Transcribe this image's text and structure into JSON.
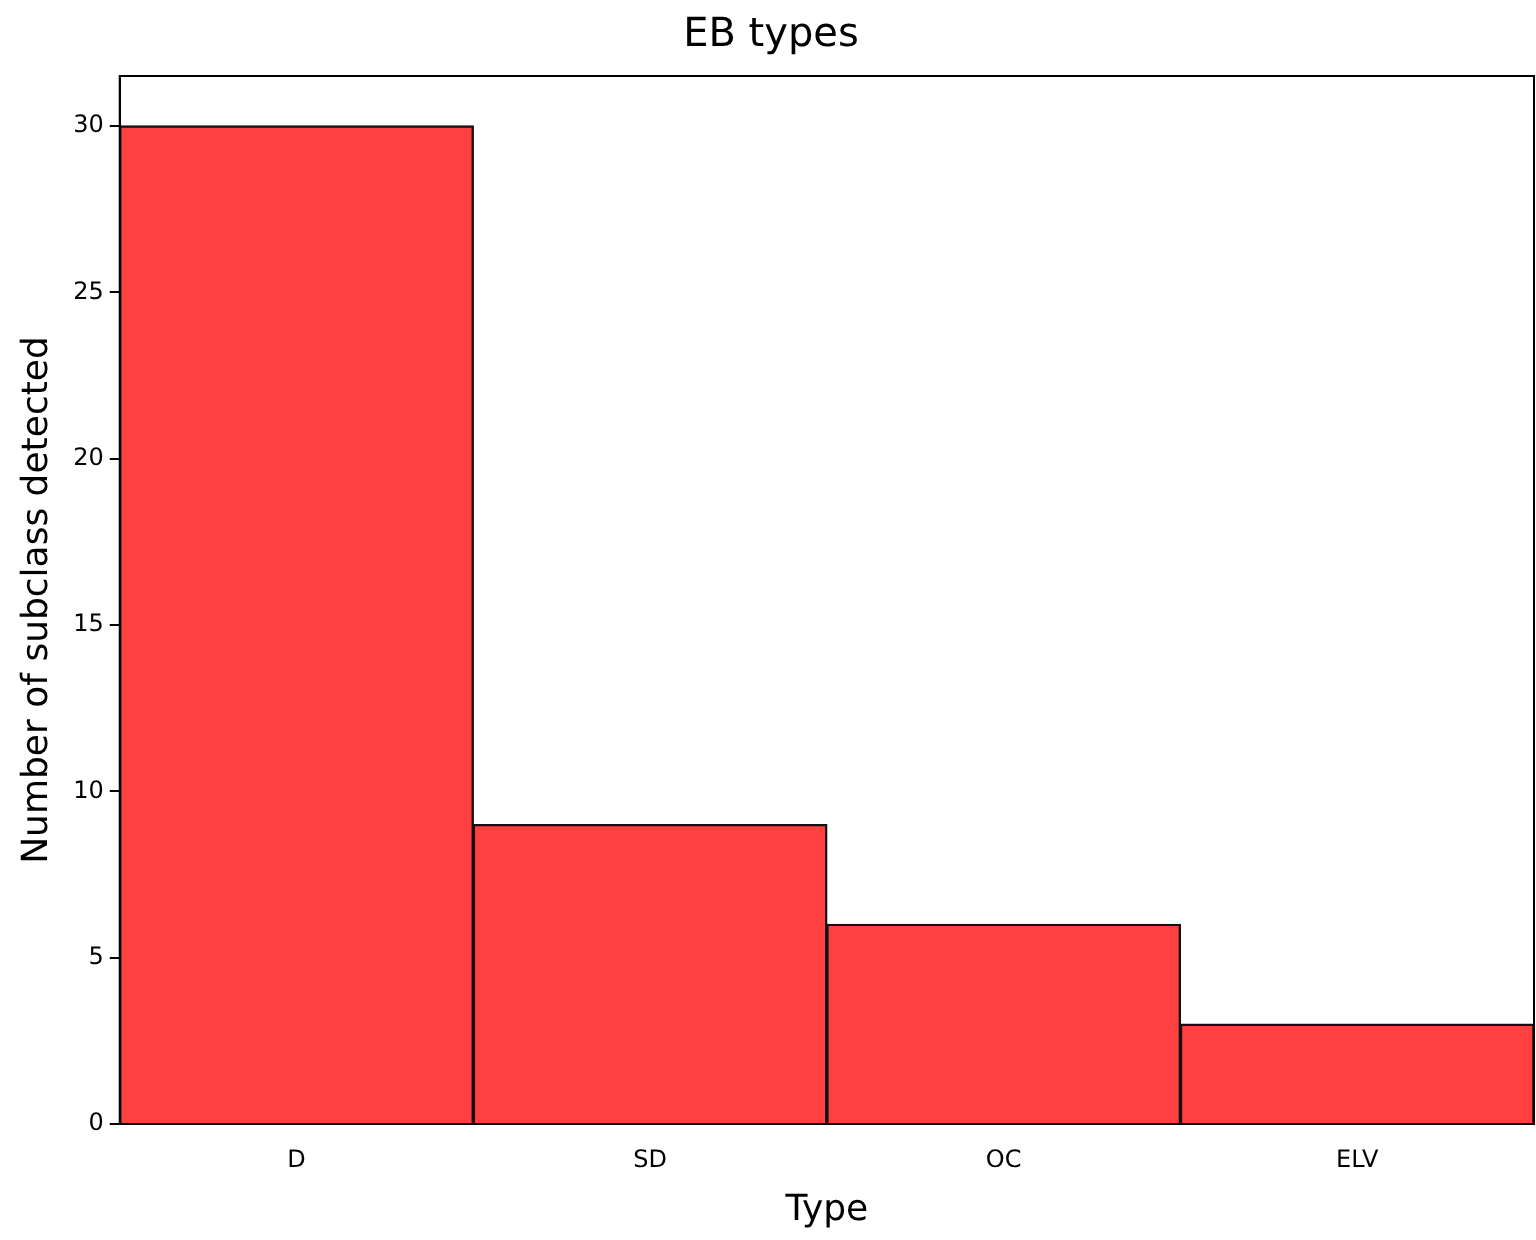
{
  "chart_data": {
    "type": "bar",
    "title": "EB types",
    "xlabel": "Type",
    "ylabel": "Number of subclass detected",
    "categories": [
      "D",
      "SD",
      "OC",
      "ELV"
    ],
    "values": [
      30,
      9,
      6,
      3
    ],
    "color": "#ff4040",
    "ylim": [
      0,
      31.5
    ],
    "yticks": [
      0,
      5,
      10,
      15,
      20,
      25,
      30
    ],
    "grid": false,
    "legend": false
  }
}
